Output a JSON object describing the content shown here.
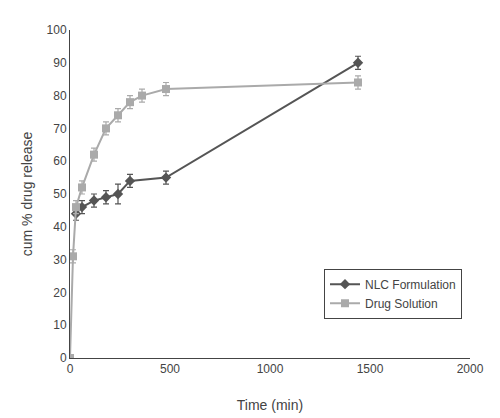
{
  "chart_data": {
    "type": "line",
    "xlabel": "Time (min)",
    "ylabel": "cum % drug release",
    "series": [
      {
        "name": "NLC Formulation",
        "color": "#555555",
        "marker": "diamond",
        "line_style": "solid",
        "x": [
          30,
          60,
          120,
          180,
          240,
          300,
          480,
          1440
        ],
        "values": [
          44,
          46,
          48,
          49,
          50,
          54,
          55,
          90
        ],
        "yerr": [
          2,
          2,
          2,
          2,
          3,
          2,
          2,
          2
        ]
      },
      {
        "name": "Drug Solution",
        "color": "#aaaaaa",
        "marker": "square",
        "line_style": "solid",
        "x": [
          0,
          15,
          30,
          60,
          120,
          180,
          240,
          300,
          360,
          480,
          1440
        ],
        "values": [
          0,
          31,
          46,
          52,
          62,
          70,
          74,
          78,
          80,
          82,
          84
        ],
        "yerr": [
          0,
          2,
          2,
          2,
          2,
          2,
          2,
          2,
          2,
          2,
          2
        ]
      }
    ],
    "xlim": [
      0,
      2000
    ],
    "ylim": [
      0,
      100
    ],
    "xticks": [
      0,
      500,
      1000,
      1500,
      2000
    ],
    "yticks": [
      0,
      10,
      20,
      30,
      40,
      50,
      60,
      70,
      80,
      90,
      100
    ],
    "grid": false,
    "legend": "lower right"
  }
}
